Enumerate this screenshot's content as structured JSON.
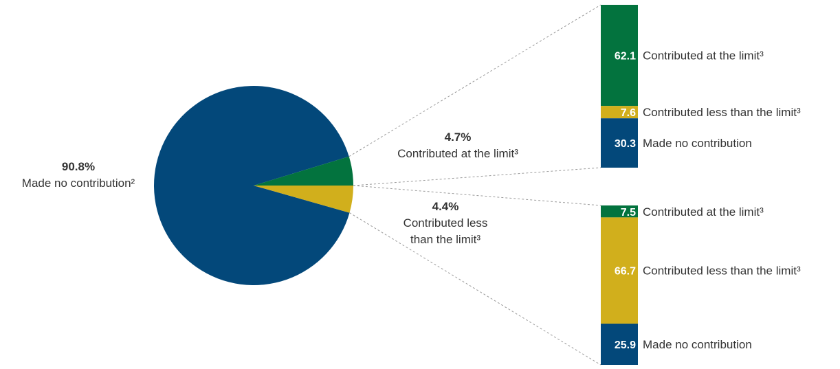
{
  "colors": {
    "navy": "#03487a",
    "green": "#03733e",
    "gold": "#d1af1c",
    "leader": "#9a9a9a"
  },
  "chart_data": [
    {
      "type": "pie",
      "slices": [
        {
          "value": 90.8,
          "label": "90.8%",
          "desc": "Made no contribution²",
          "color": "#03487a"
        },
        {
          "value": 4.7,
          "label": "4.7%",
          "desc": "Contributed at the limit³",
          "color": "#03733e"
        },
        {
          "value": 4.4,
          "label": "4.4%",
          "desc_lines": [
            "Contributed less",
            "than the limit³"
          ],
          "color": "#d1af1c"
        }
      ]
    },
    {
      "type": "bar",
      "stacked": true,
      "breakdown_of": "Contributed at the limit³",
      "segments": [
        {
          "value": 62.1,
          "label": "62.1",
          "desc": "Contributed at the limit³",
          "color": "#03733e"
        },
        {
          "value": 7.6,
          "label": "7.6",
          "desc": "Contributed less than the limit³",
          "color": "#d1af1c"
        },
        {
          "value": 30.3,
          "label": "30.3",
          "desc": "Made no contribution",
          "color": "#03487a"
        }
      ]
    },
    {
      "type": "bar",
      "stacked": true,
      "breakdown_of": "Contributed less than the limit³",
      "segments": [
        {
          "value": 7.5,
          "label": "7.5",
          "desc": "Contributed at the limit³",
          "color": "#03733e"
        },
        {
          "value": 66.7,
          "label": "66.7",
          "desc": "Contributed less than the limit³",
          "color": "#d1af1c"
        },
        {
          "value": 25.9,
          "label": "25.9",
          "desc": "Made no contribution",
          "color": "#03487a"
        }
      ]
    }
  ]
}
